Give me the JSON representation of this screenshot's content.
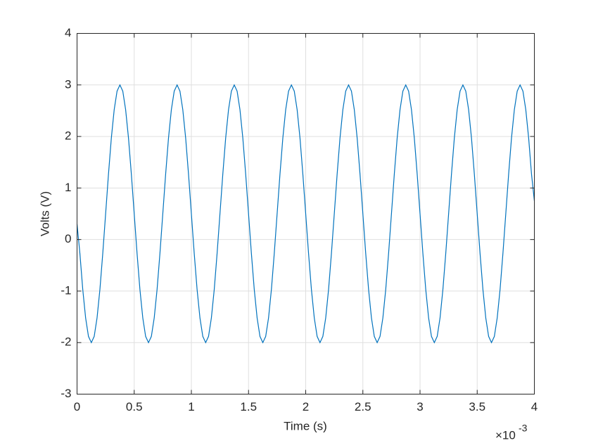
{
  "chart_data": {
    "type": "line",
    "xlabel": "Time (s)",
    "ylabel": "Volts (V)",
    "x_exponent": {
      "base": "×10",
      "power": "-3"
    },
    "color": "#0072bd",
    "grid": true,
    "xlim": [
      0,
      4
    ],
    "xticks": [
      0,
      0.5,
      1,
      1.5,
      2,
      2.5,
      3,
      3.5,
      4
    ],
    "ylim": [
      -3,
      4
    ],
    "yticks": [
      -3,
      -2,
      -1,
      0,
      1,
      2,
      3,
      4
    ],
    "x": [
      0,
      0.025,
      0.05,
      0.075,
      0.1,
      0.125,
      0.15,
      0.175,
      0.2,
      0.225,
      0.25,
      0.275,
      0.3,
      0.325,
      0.35,
      0.375,
      0.4,
      0.425,
      0.45,
      0.475,
      0.5,
      0.525,
      0.55,
      0.575,
      0.6,
      0.625,
      0.65,
      0.675,
      0.7,
      0.725,
      0.75,
      0.775,
      0.8,
      0.825,
      0.85,
      0.875,
      0.9,
      0.925,
      0.95,
      0.975,
      1,
      1.025,
      1.05,
      1.075,
      1.1,
      1.125,
      1.15,
      1.175,
      1.2,
      1.225,
      1.25,
      1.275,
      1.3,
      1.325,
      1.35,
      1.375,
      1.4,
      1.425,
      1.45,
      1.475,
      1.5,
      1.525,
      1.55,
      1.575,
      1.6,
      1.625,
      1.65,
      1.675,
      1.7,
      1.725,
      1.75,
      1.775,
      1.8,
      1.825,
      1.85,
      1.875,
      1.9,
      1.925,
      1.95,
      1.975,
      2,
      2.025,
      2.05,
      2.075,
      2.1,
      2.125,
      2.15,
      2.175,
      2.2,
      2.225,
      2.25,
      2.275,
      2.3,
      2.325,
      2.35,
      2.375,
      2.4,
      2.425,
      2.45,
      2.475,
      2.5,
      2.525,
      2.55,
      2.575,
      2.6,
      2.625,
      2.65,
      2.675,
      2.7,
      2.725,
      2.75,
      2.775,
      2.8,
      2.825,
      2.85,
      2.875,
      2.9,
      2.925,
      2.95,
      2.975,
      3,
      3.025,
      3.05,
      3.075,
      3.1,
      3.125,
      3.15,
      3.175,
      3.2,
      3.225,
      3.25,
      3.275,
      3.3,
      3.325,
      3.35,
      3.375,
      3.4,
      3.425,
      3.45,
      3.475,
      3.5,
      3.525,
      3.55,
      3.575,
      3.6,
      3.625,
      3.65,
      3.675,
      3.7,
      3.725,
      3.75,
      3.775,
      3.8,
      3.825,
      3.85,
      3.875,
      3.9,
      3.925,
      3.95,
      3.975,
      4
    ],
    "values": [
      0.3,
      -0.27,
      -0.97,
      -1.52,
      -1.88,
      -2,
      -1.88,
      -1.52,
      -0.97,
      -0.27,
      0.5,
      1.27,
      1.97,
      2.52,
      2.88,
      3,
      2.88,
      2.52,
      1.97,
      1.27,
      0.5,
      -0.27,
      -0.97,
      -1.52,
      -1.88,
      -2,
      -1.88,
      -1.52,
      -0.97,
      -0.27,
      0.5,
      1.27,
      1.97,
      2.52,
      2.88,
      3,
      2.88,
      2.52,
      1.97,
      1.27,
      0.5,
      -0.27,
      -0.97,
      -1.52,
      -1.88,
      -2,
      -1.88,
      -1.52,
      -0.97,
      -0.27,
      0.5,
      1.27,
      1.97,
      2.52,
      2.88,
      3,
      2.88,
      2.52,
      1.97,
      1.27,
      0.5,
      -0.27,
      -0.97,
      -1.52,
      -1.88,
      -2,
      -1.88,
      -1.52,
      -0.97,
      -0.27,
      0.5,
      1.27,
      1.97,
      2.52,
      2.88,
      3,
      2.88,
      2.52,
      1.97,
      1.27,
      0.5,
      -0.27,
      -0.97,
      -1.52,
      -1.88,
      -2,
      -1.88,
      -1.52,
      -0.97,
      -0.27,
      0.5,
      1.27,
      1.97,
      2.52,
      2.88,
      3,
      2.88,
      2.52,
      1.97,
      1.27,
      0.5,
      -0.27,
      -0.97,
      -1.52,
      -1.88,
      -2,
      -1.88,
      -1.52,
      -0.97,
      -0.27,
      0.5,
      1.27,
      1.97,
      2.52,
      2.88,
      3,
      2.88,
      2.52,
      1.97,
      1.27,
      0.5,
      -0.27,
      -0.97,
      -1.52,
      -1.88,
      -2,
      -1.88,
      -1.52,
      -0.97,
      -0.27,
      0.5,
      1.27,
      1.97,
      2.52,
      2.88,
      3,
      2.88,
      2.52,
      1.97,
      1.27,
      0.5,
      -0.27,
      -0.97,
      -1.52,
      -1.88,
      -2,
      -1.88,
      -1.52,
      -0.97,
      -0.27,
      0.5,
      1.27,
      1.97,
      2.52,
      2.88,
      3,
      2.88,
      2.52,
      1.97,
      1.27,
      0.75
    ]
  }
}
